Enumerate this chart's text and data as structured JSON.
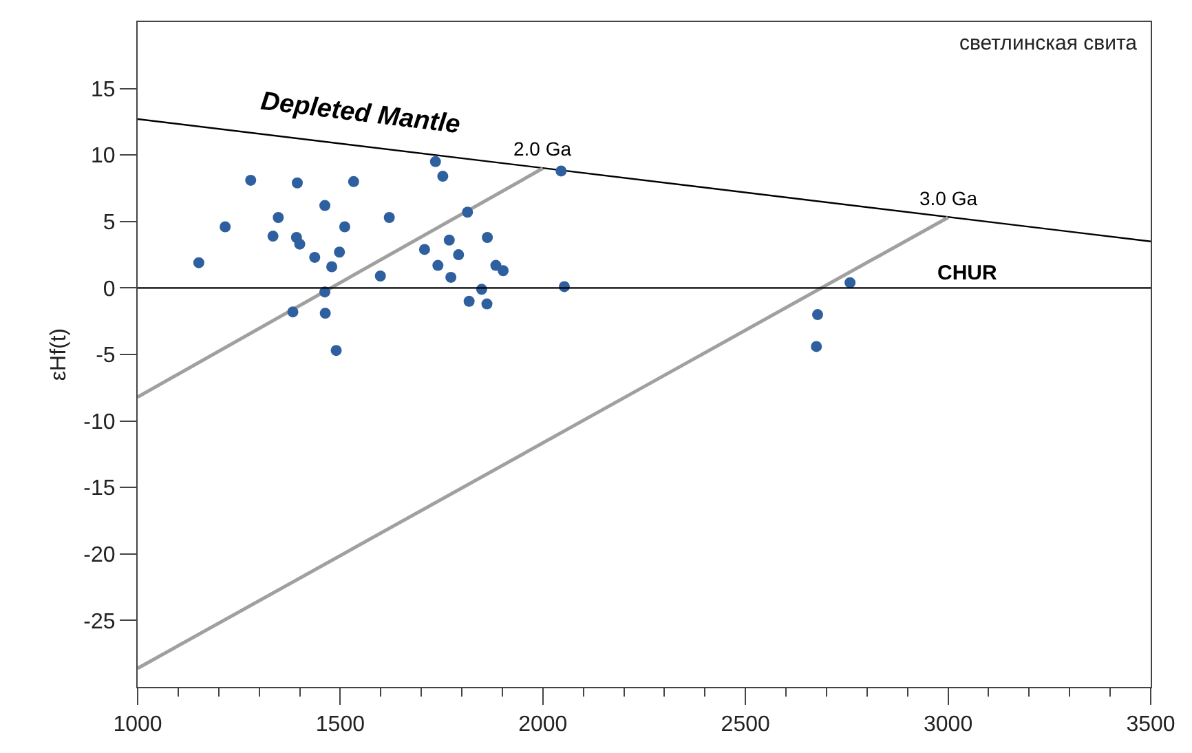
{
  "chart_data": {
    "type": "scatter",
    "ylabel": "εHf(t)",
    "xlim": [
      1000,
      3500
    ],
    "xticks": [
      1000,
      1500,
      2000,
      2500,
      3000,
      3500
    ],
    "ylim": [
      -30,
      20
    ],
    "yticks": [
      -25,
      -20,
      -15,
      -10,
      -5,
      0,
      5,
      10,
      15
    ],
    "legend": false,
    "marker": "circle",
    "series": [
      {
        "type": "line",
        "name": "Depleted Mantle",
        "marker": "none",
        "color": "#000000",
        "x": [
          1000,
          3500
        ],
        "values": [
          12.7,
          3.5
        ]
      },
      {
        "type": "line",
        "name": "2.0 Ga",
        "marker": "none",
        "color": "#a0a0a0",
        "x": [
          1000,
          2000
        ],
        "values": [
          -8.2,
          9.0
        ]
      },
      {
        "type": "line",
        "name": "3.0 Ga",
        "marker": "none",
        "color": "#a0a0a0",
        "x": [
          1000,
          3000
        ],
        "values": [
          -28.6,
          5.3
        ]
      },
      {
        "color": "#2e5f9e",
        "x": [
          1151,
          1216,
          1279,
          1334,
          1347,
          1394,
          1392,
          1400,
          1437,
          1462,
          1479,
          1498,
          1511,
          1533,
          1462,
          1383,
          1463,
          1490,
          1599,
          1621,
          1708,
          1735,
          1753,
          1741,
          1769,
          1773,
          1792,
          1814,
          1818,
          1849,
          1863,
          1862,
          1884,
          1902,
          2045,
          2053,
          2758,
          2678,
          2675
        ],
        "values": [
          1.9,
          4.6,
          8.1,
          3.9,
          5.3,
          7.9,
          3.8,
          3.3,
          2.3,
          6.2,
          1.6,
          2.7,
          4.6,
          8.0,
          -0.3,
          -1.8,
          -1.9,
          -4.7,
          0.9,
          5.3,
          2.9,
          9.5,
          8.4,
          1.7,
          3.6,
          0.8,
          2.5,
          5.7,
          -1.0,
          -0.1,
          3.8,
          -1.2,
          1.7,
          1.3,
          8.8,
          0.1,
          0.4,
          -2.0,
          -4.4
        ]
      }
    ],
    "ref_lines": [
      {
        "axis": "y",
        "value": 0,
        "label": "CHUR",
        "color": "#000000"
      }
    ],
    "annotations": [
      "светлинская свита"
    ]
  }
}
